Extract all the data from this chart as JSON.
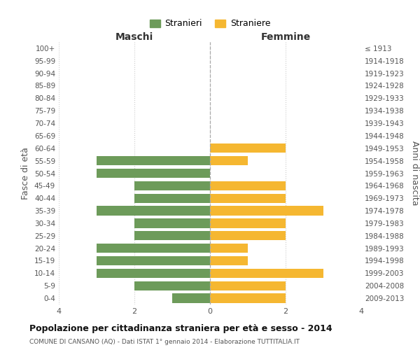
{
  "age_groups": [
    "100+",
    "95-99",
    "90-94",
    "85-89",
    "80-84",
    "75-79",
    "70-74",
    "65-69",
    "60-64",
    "55-59",
    "50-54",
    "45-49",
    "40-44",
    "35-39",
    "30-34",
    "25-29",
    "20-24",
    "15-19",
    "10-14",
    "5-9",
    "0-4"
  ],
  "birth_years": [
    "≤ 1913",
    "1914-1918",
    "1919-1923",
    "1924-1928",
    "1929-1933",
    "1934-1938",
    "1939-1943",
    "1944-1948",
    "1949-1953",
    "1954-1958",
    "1959-1963",
    "1964-1968",
    "1969-1973",
    "1974-1978",
    "1979-1983",
    "1984-1988",
    "1989-1993",
    "1994-1998",
    "1999-2003",
    "2004-2008",
    "2009-2013"
  ],
  "maschi": [
    0,
    0,
    0,
    0,
    0,
    0,
    0,
    0,
    0,
    3,
    3,
    2,
    2,
    3,
    2,
    2,
    3,
    3,
    3,
    2,
    1
  ],
  "femmine": [
    0,
    0,
    0,
    0,
    0,
    0,
    0,
    0,
    2,
    1,
    0,
    2,
    2,
    3,
    2,
    2,
    1,
    1,
    3,
    2,
    2
  ],
  "color_maschi": "#6d9b5a",
  "color_femmine": "#f5b731",
  "xlim": 4,
  "title": "Popolazione per cittadinanza straniera per età e sesso - 2014",
  "subtitle": "COMUNE DI CANSANO (AQ) - Dati ISTAT 1° gennaio 2014 - Elaborazione TUTTITALIA.IT",
  "xlabel_left": "Maschi",
  "xlabel_right": "Femmine",
  "ylabel_left": "Fasce di età",
  "ylabel_right": "Anni di nascita",
  "legend_maschi": "Stranieri",
  "legend_femmine": "Straniere",
  "bg_color": "#ffffff",
  "grid_color": "#cccccc",
  "bar_height": 0.75
}
